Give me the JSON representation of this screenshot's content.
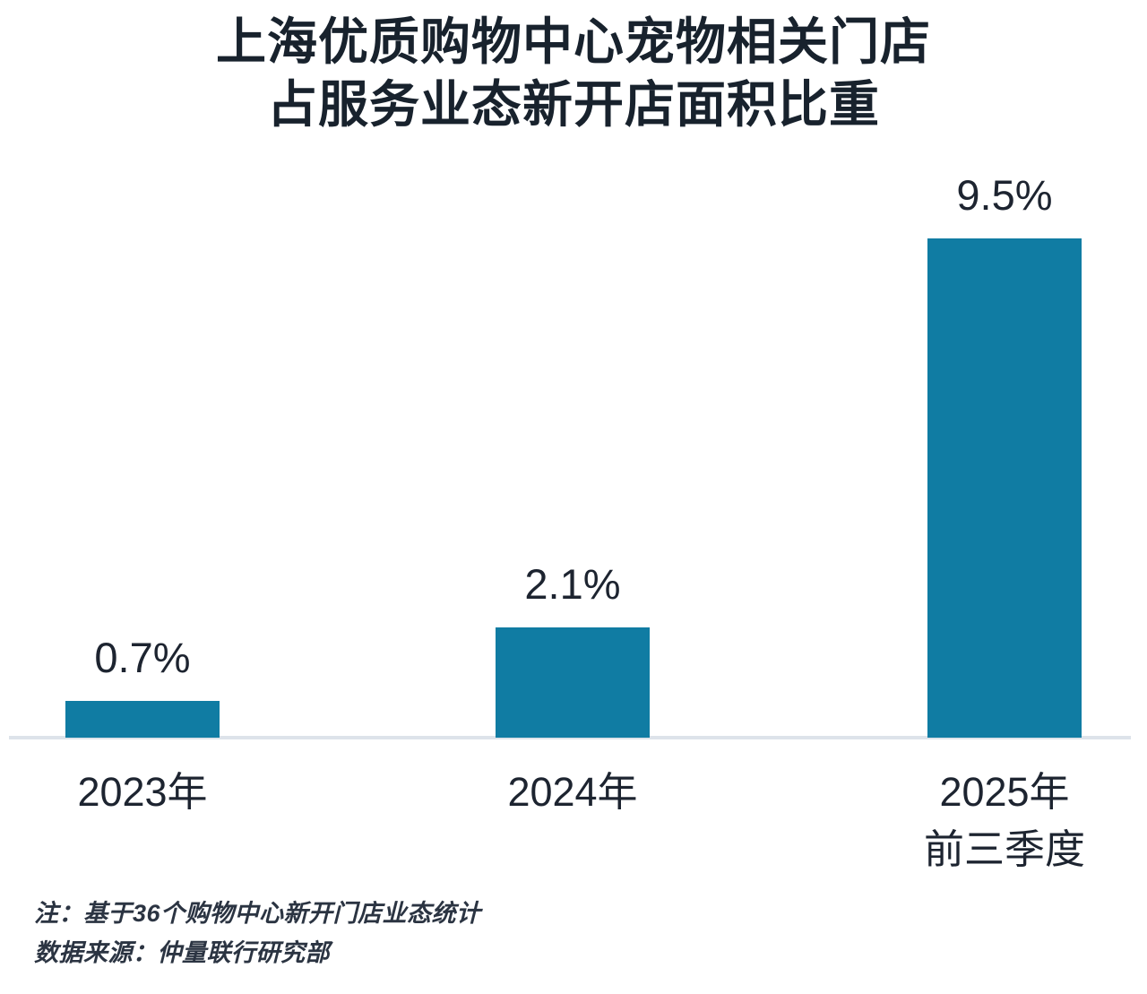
{
  "title": {
    "line1": "上海优质购物中心宠物相关门店",
    "line2": "占服务业态新开店面积比重"
  },
  "chart_data": {
    "type": "bar",
    "title": "上海优质购物中心宠物相关门店占服务业态新开店面积比重",
    "categories": [
      "2023年",
      "2024年",
      "2025年前三季度"
    ],
    "values": [
      0.7,
      2.1,
      9.5
    ],
    "value_labels": [
      "0.7%",
      "2.1%",
      "9.5%"
    ],
    "xlabel": "",
    "ylabel": "",
    "unit": "%",
    "ylim": [
      0,
      10
    ],
    "grid": false,
    "legend": false,
    "bar_color": "#107ca3",
    "bars": [
      {
        "value": 0.7,
        "value_label": "0.7%",
        "category_lines": [
          "2023年"
        ]
      },
      {
        "value": 2.1,
        "value_label": "2.1%",
        "category_lines": [
          "2024年"
        ]
      },
      {
        "value": 9.5,
        "value_label": "9.5%",
        "category_lines": [
          "2025年",
          "前三季度"
        ]
      }
    ]
  },
  "notes": {
    "line1": "注：基于36个购物中心新开门店业态统计",
    "line2": "数据来源：仲量联行研究部"
  },
  "colors": {
    "bar": "#107ca3",
    "title_text": "#18222d",
    "label_text": "#1d2430",
    "axis_line": "#dde3ea",
    "note_text": "#2b3442"
  }
}
